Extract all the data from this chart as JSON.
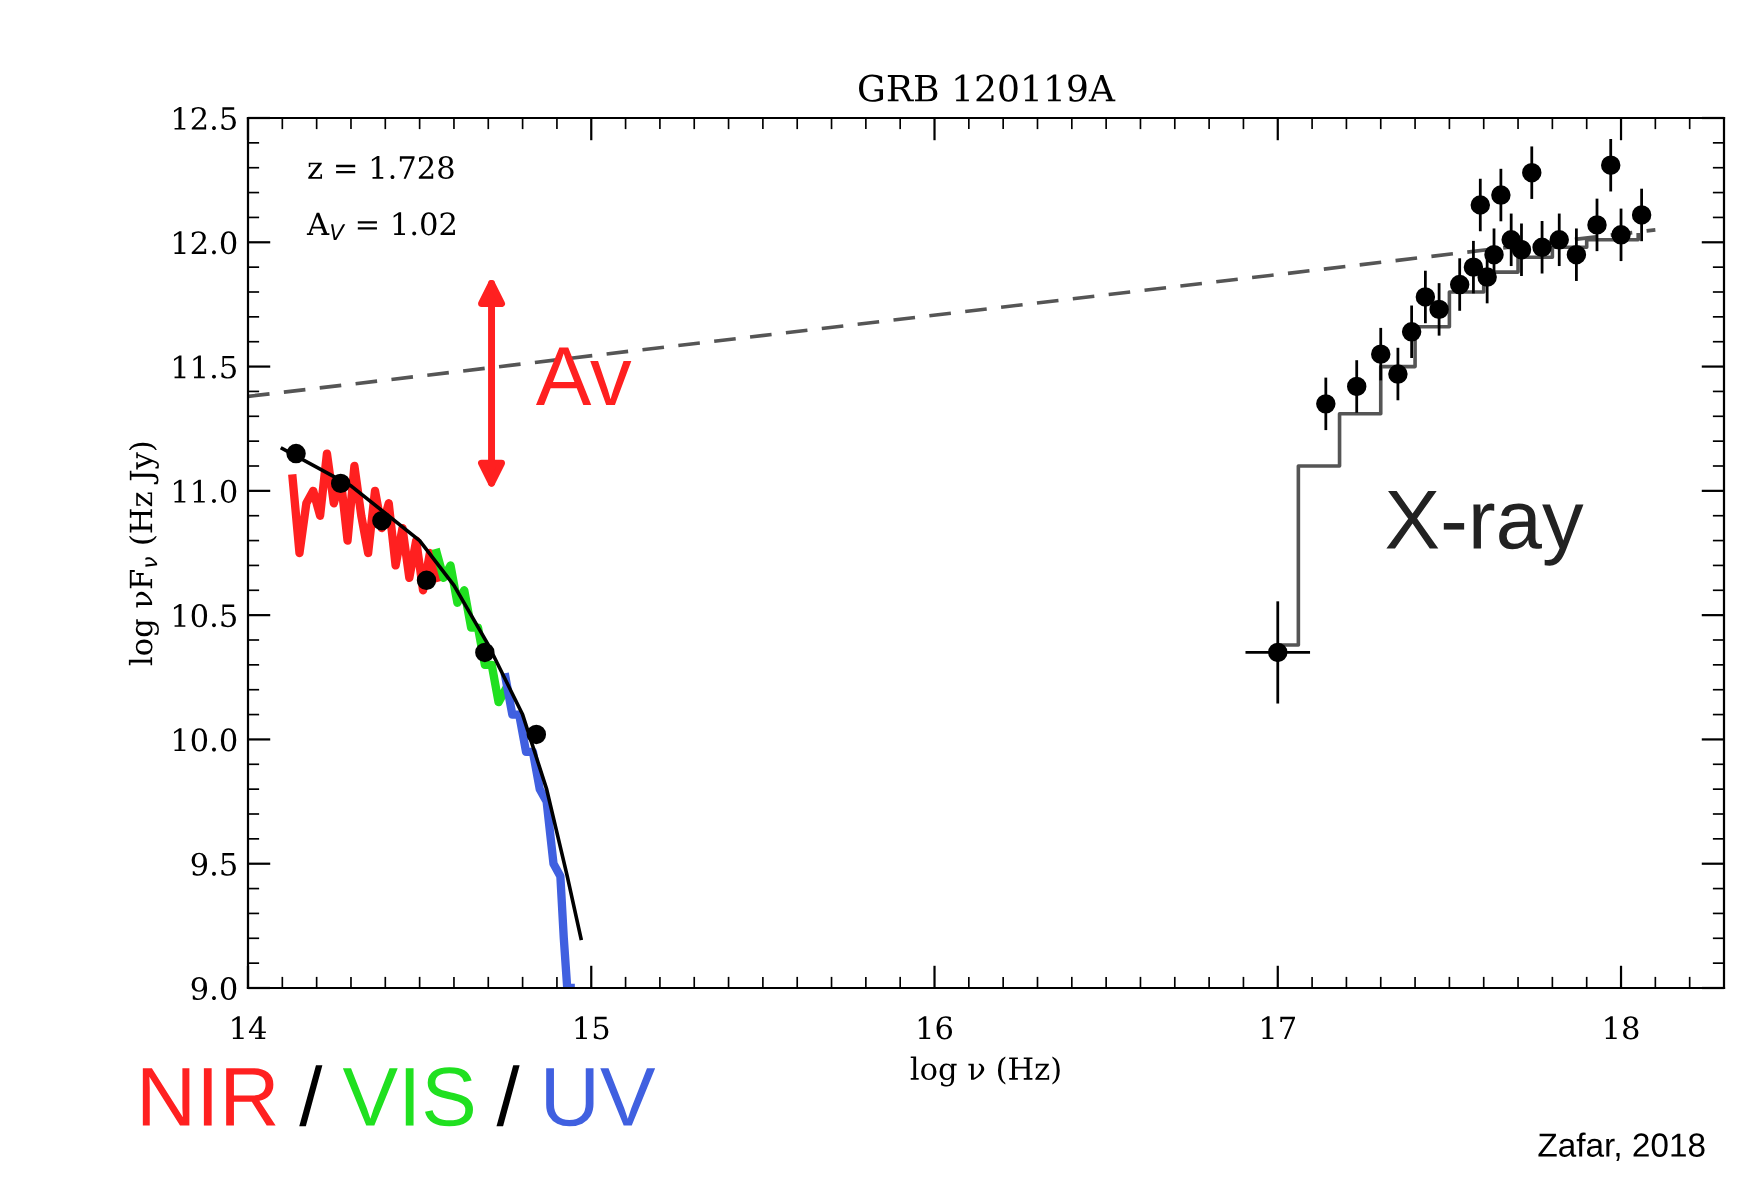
{
  "chart_data": {
    "type": "line",
    "title": "GRB 120119A",
    "xlabel": "log ν (Hz)",
    "ylabel": "log νF$_{ν}$ (Hz Jy)",
    "xlim": [
      14,
      18.3
    ],
    "xticks": [
      14,
      15,
      16,
      17,
      18
    ],
    "ylim": [
      9.0,
      12.5
    ],
    "yticks": [
      {
        "value": 9,
        "label": "9.0"
      },
      {
        "value": 9.5,
        "label": "9.5"
      },
      {
        "value": 10,
        "label": "10.0"
      },
      {
        "value": 10.5,
        "label": "10.5"
      },
      {
        "value": 11,
        "label": "11.0"
      },
      {
        "value": 11.5,
        "label": "11.5"
      },
      {
        "value": 12,
        "label": "12.0"
      },
      {
        "value": 12.5,
        "label": "12.5"
      }
    ],
    "grid": false,
    "legend": false,
    "series": [
      {
        "name": "NIR",
        "color": "#ff2020",
        "x": [
          14.13,
          14.15,
          14.17,
          14.19,
          14.21,
          14.23,
          14.25,
          14.27,
          14.29,
          14.31,
          14.33,
          14.35,
          14.37,
          14.39,
          14.41,
          14.43,
          14.45,
          14.47,
          14.49,
          14.51,
          14.53,
          14.55
        ],
        "values": [
          11.05,
          10.75,
          10.95,
          11.0,
          10.9,
          11.15,
          10.95,
          11.05,
          10.8,
          11.1,
          10.9,
          10.75,
          11.0,
          10.85,
          10.95,
          10.7,
          10.85,
          10.65,
          10.8,
          10.6,
          10.75,
          10.65
        ]
      },
      {
        "name": "VIS",
        "color": "#20e020",
        "x": [
          14.55,
          14.57,
          14.59,
          14.61,
          14.63,
          14.65,
          14.67,
          14.69,
          14.71,
          14.73,
          14.75
        ],
        "values": [
          10.75,
          10.65,
          10.7,
          10.55,
          10.6,
          10.45,
          10.45,
          10.3,
          10.3,
          10.15,
          10.2
        ]
      },
      {
        "name": "UV",
        "color": "#4060e0",
        "x": [
          14.75,
          14.77,
          14.79,
          14.81,
          14.83,
          14.85,
          14.87,
          14.89,
          14.91,
          14.92,
          14.93,
          14.94
        ],
        "values": [
          10.25,
          10.1,
          10.1,
          9.95,
          9.95,
          9.8,
          9.75,
          9.5,
          9.45,
          9.2,
          9.0,
          9.0
        ]
      },
      {
        "color": "#000000",
        "x": [
          14.1,
          14.3,
          14.5,
          14.6,
          14.7,
          14.8,
          14.87,
          14.93,
          14.97
        ],
        "values": [
          11.17,
          11.02,
          10.8,
          10.62,
          10.38,
          10.1,
          9.8,
          9.45,
          9.2
        ]
      },
      {
        "color": "#555555",
        "line_style": "dashed",
        "x": [
          14.0,
          18.1
        ],
        "values": [
          11.38,
          12.05
        ]
      },
      {
        "type": "step",
        "color": "#555555",
        "x": [
          17.0,
          17.06,
          17.18,
          17.3,
          17.4,
          17.5,
          17.6,
          17.7,
          17.8,
          17.9,
          18.05
        ],
        "values": [
          10.38,
          11.1,
          11.31,
          11.5,
          11.66,
          11.8,
          11.88,
          11.94,
          11.98,
          12.01,
          12.03
        ]
      },
      {
        "type": "scatter",
        "color": "#000000",
        "marker": "circle",
        "x": [
          14.14,
          14.27,
          14.39,
          14.52,
          14.69,
          14.84
        ],
        "values": [
          11.15,
          11.03,
          10.88,
          10.64,
          10.35,
          10.02
        ]
      },
      {
        "type": "scatter",
        "color": "#000000",
        "marker": "circle",
        "x": [
          17.0,
          17.14,
          17.23,
          17.3,
          17.35,
          17.39,
          17.43,
          17.47,
          17.53,
          17.57,
          17.59,
          17.61,
          17.63,
          17.65,
          17.68,
          17.71,
          17.74,
          17.77,
          17.82,
          17.87,
          17.93,
          17.97,
          18.0,
          18.06
        ],
        "values": [
          10.35,
          11.35,
          11.42,
          11.55,
          11.47,
          11.64,
          11.78,
          11.73,
          11.83,
          11.9,
          12.15,
          11.86,
          11.95,
          12.19,
          12.01,
          11.97,
          12.28,
          11.98,
          12.01,
          11.95,
          12.07,
          12.31,
          12.03,
          12.11
        ],
        "errors": [
          0.2,
          0.1,
          0.1,
          0.1,
          0.1,
          0.1,
          0.1,
          0.1,
          0.1,
          0.1,
          0.1,
          0.1,
          0.1,
          0.1,
          0.1,
          0.1,
          0.1,
          0.1,
          0.1,
          0.1,
          0.1,
          0.1,
          0.1,
          0.1
        ],
        "xerrors": [
          0.09,
          null,
          null,
          null,
          null,
          null,
          null,
          null,
          null,
          null,
          null,
          null,
          null,
          null,
          null,
          null,
          null,
          null,
          null,
          null,
          null,
          null,
          null,
          null
        ]
      }
    ],
    "annotations": [
      "z = 1.728",
      "A$_{V}$ = 1.02",
      "Av",
      "X-ray",
      "/",
      "/",
      "Zafar, 2018"
    ]
  }
}
